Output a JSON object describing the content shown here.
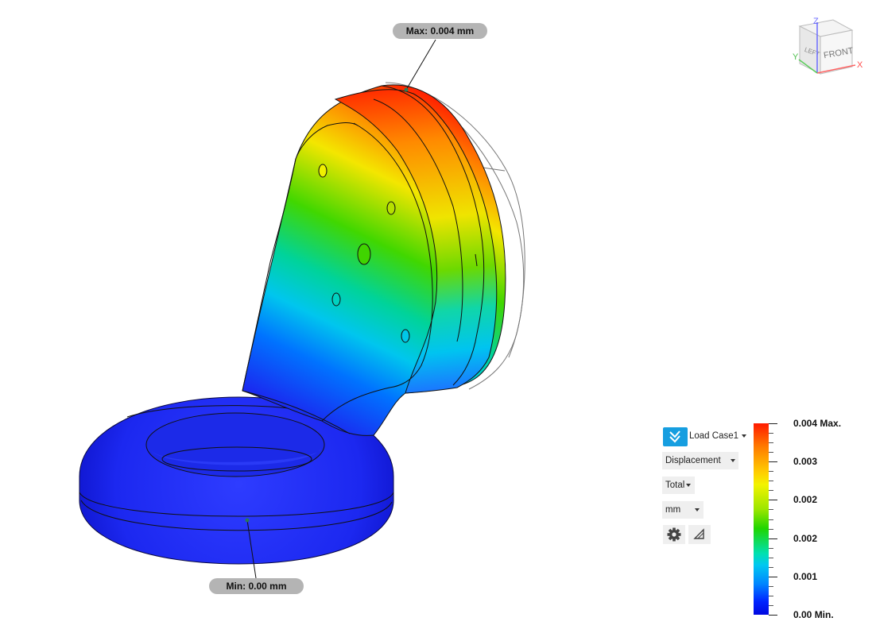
{
  "probes": {
    "max_label": "Max: 0.004 mm",
    "min_label": "Min: 0.00 mm"
  },
  "view_cube": {
    "top_axis": "Z",
    "left_axis": "Y",
    "right_axis": "X",
    "face_front": "FRONT",
    "face_left": "LEFT"
  },
  "legend": {
    "load_case": "Load Case1",
    "result_type": "Displacement",
    "component": "Total",
    "units": "mm",
    "scale_labels": [
      "0.004 Max.",
      "0.003",
      "0.002",
      "0.002",
      "0.001",
      "0.00 Min."
    ],
    "scale_min_fraction": 0,
    "scale_max_fraction": 1
  },
  "colors": {
    "accent": "#169ee0",
    "max_color": "#ff1a00",
    "min_color": "#0008e0"
  },
  "icons": [
    "checkmark-chevrons-icon",
    "gear-icon",
    "triangle-probe-icon"
  ]
}
